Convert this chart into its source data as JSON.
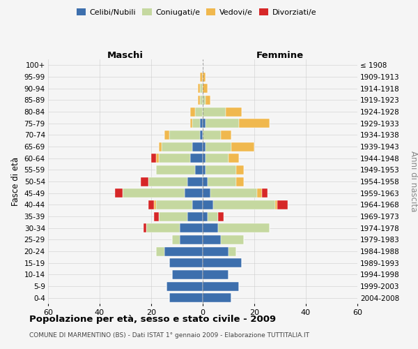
{
  "age_groups": [
    "0-4",
    "5-9",
    "10-14",
    "15-19",
    "20-24",
    "25-29",
    "30-34",
    "35-39",
    "40-44",
    "45-49",
    "50-54",
    "55-59",
    "60-64",
    "65-69",
    "70-74",
    "75-79",
    "80-84",
    "85-89",
    "90-94",
    "95-99",
    "100+"
  ],
  "birth_years": [
    "2004-2008",
    "1999-2003",
    "1994-1998",
    "1989-1993",
    "1984-1988",
    "1979-1983",
    "1974-1978",
    "1969-1973",
    "1964-1968",
    "1959-1963",
    "1954-1958",
    "1949-1953",
    "1944-1948",
    "1939-1943",
    "1934-1938",
    "1929-1933",
    "1924-1928",
    "1919-1923",
    "1914-1918",
    "1909-1913",
    "≤ 1908"
  ],
  "colors": {
    "celibi": "#3d6fad",
    "coniugati": "#c5d8a0",
    "vedovi": "#f0b84e",
    "divorziati": "#d62728",
    "bg": "#f5f5f5",
    "grid": "#cccccc"
  },
  "maschi": {
    "celibi": [
      13,
      14,
      12,
      13,
      15,
      9,
      9,
      6,
      4,
      7,
      6,
      3,
      5,
      4,
      1,
      1,
      0,
      0,
      0,
      0,
      0
    ],
    "coniugati": [
      0,
      0,
      0,
      0,
      3,
      3,
      13,
      11,
      14,
      24,
      15,
      15,
      12,
      12,
      12,
      3,
      3,
      1,
      1,
      0,
      0
    ],
    "vedovi": [
      0,
      0,
      0,
      0,
      0,
      0,
      0,
      0,
      1,
      0,
      0,
      0,
      1,
      1,
      2,
      1,
      2,
      1,
      1,
      1,
      0
    ],
    "divorziati": [
      0,
      0,
      0,
      0,
      0,
      0,
      1,
      2,
      2,
      3,
      3,
      0,
      2,
      0,
      0,
      0,
      0,
      0,
      0,
      0,
      0
    ]
  },
  "femmine": {
    "celibi": [
      11,
      14,
      10,
      15,
      10,
      7,
      6,
      2,
      4,
      3,
      2,
      1,
      1,
      1,
      0,
      1,
      0,
      0,
      0,
      0,
      0
    ],
    "coniugati": [
      0,
      0,
      0,
      0,
      3,
      9,
      20,
      4,
      24,
      18,
      11,
      12,
      9,
      10,
      7,
      13,
      9,
      1,
      0,
      0,
      0
    ],
    "vedovi": [
      0,
      0,
      0,
      0,
      0,
      0,
      0,
      0,
      1,
      2,
      3,
      3,
      4,
      9,
      4,
      12,
      6,
      2,
      2,
      1,
      0
    ],
    "divorziati": [
      0,
      0,
      0,
      0,
      0,
      0,
      0,
      2,
      4,
      2,
      0,
      0,
      0,
      0,
      0,
      0,
      0,
      0,
      0,
      0,
      0
    ]
  },
  "xlim": 60,
  "title": "Popolazione per età, sesso e stato civile - 2009",
  "subtitle": "COMUNE DI MARMENTINO (BS) - Dati ISTAT 1° gennaio 2009 - Elaborazione TUTTITALIA.IT",
  "ylabel_left": "Fasce di età",
  "ylabel_right": "Anni di nascita",
  "header_left": "Maschi",
  "header_right": "Femmine",
  "legend_labels": [
    "Celibi/Nubili",
    "Coniugati/e",
    "Vedovi/e",
    "Divorziati/e"
  ]
}
